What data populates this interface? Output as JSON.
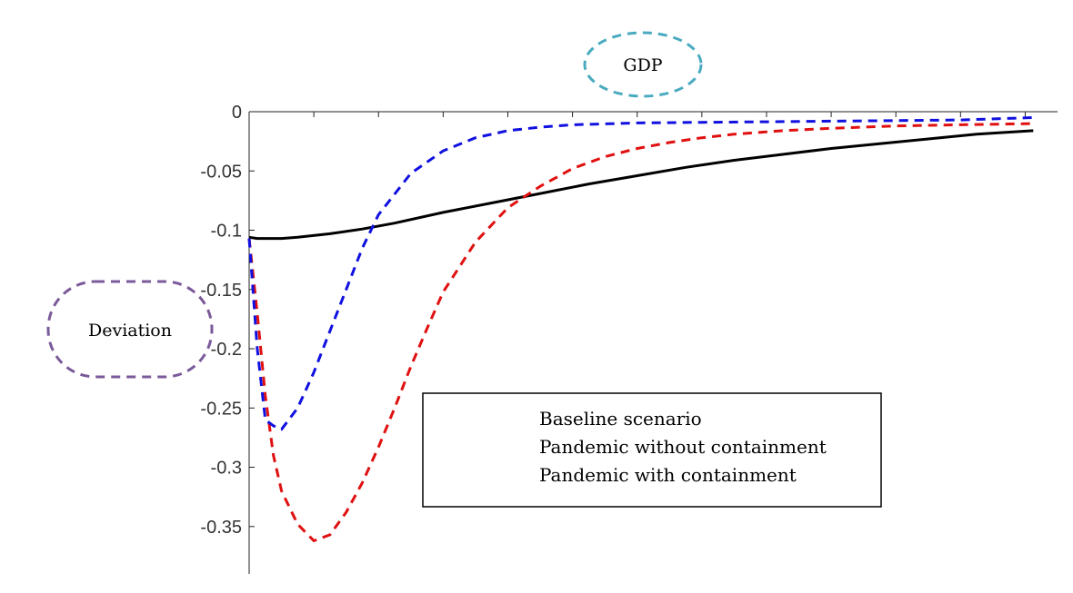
{
  "chart_data": {
    "type": "line",
    "title": "GDP",
    "ylabel": "Deviation",
    "xlabel": "",
    "xlim": [
      0,
      50
    ],
    "ylim": [
      -0.39,
      0
    ],
    "yticks": [
      0,
      -0.05,
      -0.1,
      -0.15,
      -0.2,
      -0.25,
      -0.3,
      -0.35
    ],
    "ytick_labels": [
      "0",
      "-0.05",
      "-0.1",
      "-0.15",
      "-0.2",
      "-0.25",
      "-0.3",
      "-0.35"
    ],
    "xticks": [
      0,
      4,
      8,
      12,
      16,
      20,
      24,
      28,
      32,
      36,
      40,
      44,
      48
    ],
    "grid": false,
    "legend_position": "center-right",
    "series": [
      {
        "name": "Baseline scenario",
        "color": "#000000",
        "dash": "solid",
        "x": [
          0,
          0.5,
          1,
          2,
          3,
          5,
          7,
          9,
          12,
          15,
          18,
          21,
          24,
          27,
          30,
          33,
          36,
          39,
          42,
          45,
          48.5
        ],
        "y": [
          -0.106,
          -0.107,
          -0.107,
          -0.107,
          -0.106,
          -0.103,
          -0.099,
          -0.094,
          -0.085,
          -0.077,
          -0.069,
          -0.061,
          -0.054,
          -0.047,
          -0.041,
          -0.036,
          -0.031,
          -0.027,
          -0.023,
          -0.019,
          -0.016
        ]
      },
      {
        "name": "Pandemic without containment",
        "color": "#e01010",
        "dash": "dashed",
        "x": [
          0,
          0.5,
          1,
          1.5,
          2,
          3,
          4,
          5,
          6,
          7,
          8,
          9,
          10,
          11,
          12,
          14,
          16,
          18,
          20,
          22,
          24,
          26,
          28,
          30,
          33,
          36,
          40,
          44,
          48.5
        ],
        "y": [
          -0.107,
          -0.17,
          -0.24,
          -0.29,
          -0.32,
          -0.348,
          -0.362,
          -0.357,
          -0.338,
          -0.313,
          -0.283,
          -0.25,
          -0.215,
          -0.183,
          -0.152,
          -0.11,
          -0.081,
          -0.063,
          -0.048,
          -0.038,
          -0.031,
          -0.026,
          -0.022,
          -0.019,
          -0.016,
          -0.014,
          -0.012,
          -0.011,
          -0.01
        ]
      },
      {
        "name": "Pandemic with containment",
        "color": "#1010e0",
        "dash": "dashed",
        "x": [
          0,
          0.5,
          1,
          1.5,
          2,
          3,
          4,
          5,
          6,
          7,
          8,
          10,
          12,
          14,
          16,
          18,
          20,
          24,
          28,
          32,
          36,
          40,
          44,
          48.5
        ],
        "y": [
          -0.107,
          -0.2,
          -0.26,
          -0.265,
          -0.268,
          -0.25,
          -0.22,
          -0.185,
          -0.15,
          -0.115,
          -0.087,
          -0.052,
          -0.033,
          -0.022,
          -0.016,
          -0.013,
          -0.011,
          -0.0095,
          -0.009,
          -0.0085,
          -0.008,
          -0.0075,
          -0.007,
          -0.005
        ]
      }
    ]
  }
}
